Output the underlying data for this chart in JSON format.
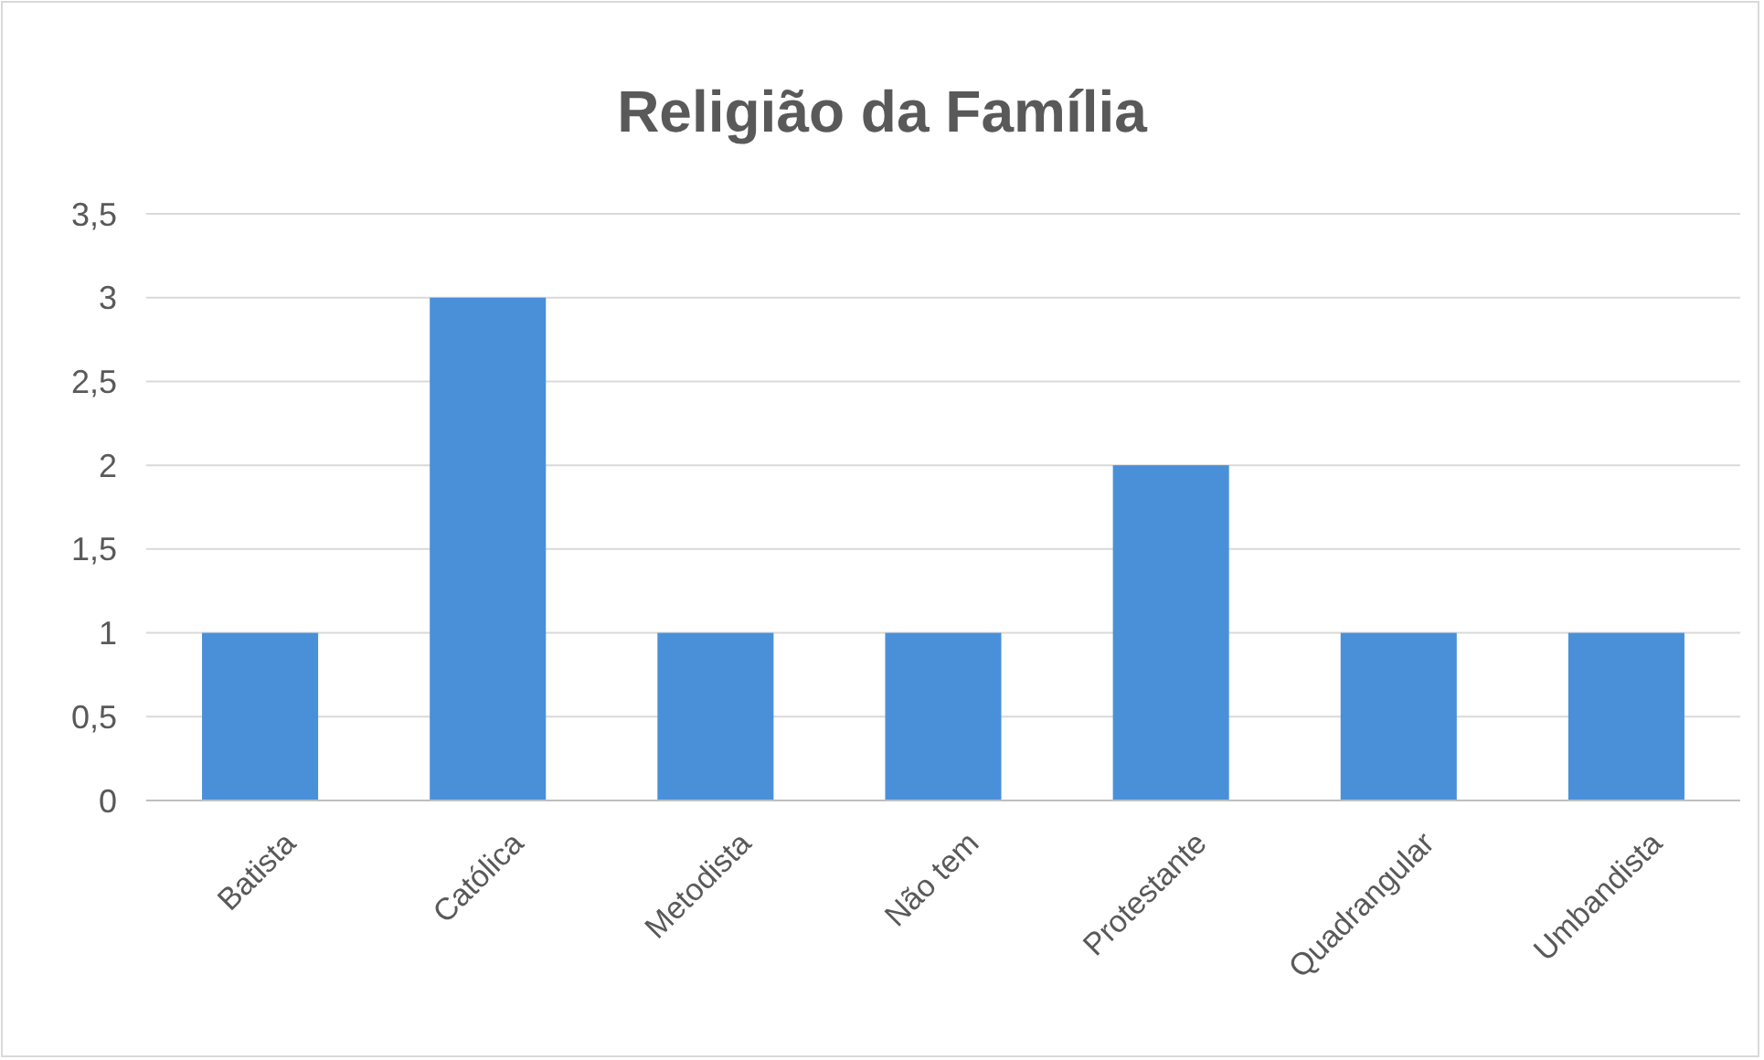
{
  "chart_data": {
    "type": "bar",
    "title": "Religião da Família",
    "categories": [
      "Batista",
      "Católica",
      "Metodista",
      "Não tem",
      "Protestante",
      "Quadrangular",
      "Umbandista"
    ],
    "values": [
      1,
      3,
      1,
      1,
      2,
      1,
      1
    ],
    "color": "#4a90d9",
    "ylim": [
      0,
      3.5
    ],
    "yticks": [
      0,
      {
        "value": 0.5,
        "label": "0,5"
      },
      1,
      {
        "value": 1.5,
        "label": "1,5"
      },
      2,
      {
        "value": 2.5,
        "label": "2,5"
      },
      3,
      {
        "value": 3.5,
        "label": "3,5"
      }
    ],
    "grid": "y"
  }
}
